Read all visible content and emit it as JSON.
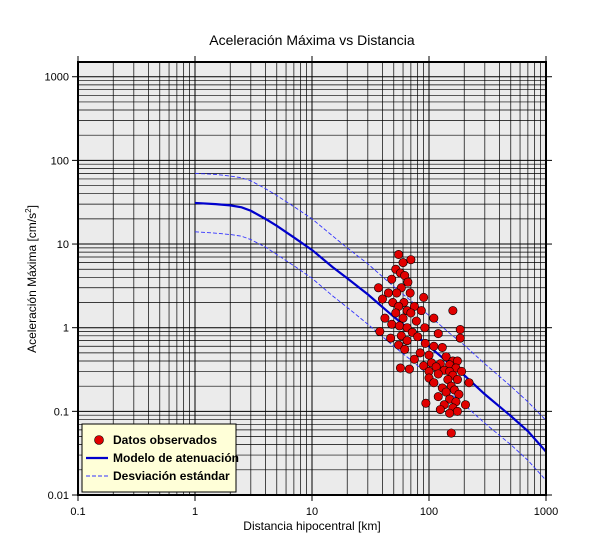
{
  "chart_data": {
    "type": "scatter",
    "title": "Aceleración Máxima vs Distancia",
    "xlabel": "Distancia hipocentral [km]",
    "ylabel_main": "Aceleración Máxima [cm/s",
    "ylabel_sup": "2",
    "ylabel_end": "]",
    "xscale": "log",
    "yscale": "log",
    "xlim": [
      0.1,
      1000
    ],
    "ylim": [
      0.01,
      1500
    ],
    "grid": true,
    "legend_position": "bottom-left",
    "x_ticks": [
      0.1,
      1,
      10,
      100,
      1000
    ],
    "x_tick_labels": [
      "0.1",
      "1",
      "10",
      "100",
      "1000"
    ],
    "y_ticks": [
      0.01,
      0.1,
      1,
      10,
      100,
      1000
    ],
    "y_tick_labels": [
      "0.01",
      "0.1",
      "1",
      "10",
      "100",
      "1000"
    ],
    "colors": {
      "background": "#ebebeb",
      "points": "#e00000",
      "model": "#0000cc",
      "deviation": "#3333ff",
      "legend_bg": "#ffffd8"
    },
    "legend": [
      "Datos observados",
      "Modelo de atenuación",
      "Desviación estándar"
    ],
    "series": [
      {
        "name": "Datos observados",
        "kind": "scatter",
        "points": [
          [
            55,
            7.5
          ],
          [
            70,
            6.5
          ],
          [
            60,
            6
          ],
          [
            52,
            5
          ],
          [
            57,
            4.5
          ],
          [
            62,
            4.2
          ],
          [
            48,
            3.8
          ],
          [
            66,
            3.5
          ],
          [
            58,
            3.0
          ],
          [
            37,
            3.0
          ],
          [
            45,
            2.6
          ],
          [
            53,
            2.6
          ],
          [
            69,
            2.6
          ],
          [
            90,
            2.3
          ],
          [
            40,
            2.2
          ],
          [
            49,
            2.0
          ],
          [
            61,
            2.0
          ],
          [
            55,
            1.8
          ],
          [
            75,
            1.8
          ],
          [
            65,
            1.6
          ],
          [
            86,
            1.6
          ],
          [
            160,
            1.6
          ],
          [
            52,
            1.5
          ],
          [
            70,
            1.5
          ],
          [
            42,
            1.3
          ],
          [
            60,
            1.3
          ],
          [
            110,
            1.3
          ],
          [
            78,
            1.2
          ],
          [
            48,
            1.1
          ],
          [
            56,
            1.05
          ],
          [
            92,
            1.0
          ],
          [
            65,
            1.0
          ],
          [
            185,
            0.95
          ],
          [
            38,
            0.9
          ],
          [
            72,
            0.88
          ],
          [
            120,
            0.85
          ],
          [
            58,
            0.8
          ],
          [
            80,
            0.78
          ],
          [
            185,
            0.75
          ],
          [
            47,
            0.75
          ],
          [
            65,
            0.7
          ],
          [
            93,
            0.65
          ],
          [
            55,
            0.62
          ],
          [
            110,
            0.6
          ],
          [
            130,
            0.58
          ],
          [
            62,
            0.55
          ],
          [
            84,
            0.5
          ],
          [
            100,
            0.47
          ],
          [
            140,
            0.45
          ],
          [
            75,
            0.42
          ],
          [
            160,
            0.4
          ],
          [
            175,
            0.4
          ],
          [
            105,
            0.38
          ],
          [
            125,
            0.37
          ],
          [
            150,
            0.36
          ],
          [
            90,
            0.35
          ],
          [
            115,
            0.34
          ],
          [
            170,
            0.33
          ],
          [
            57,
            0.33
          ],
          [
            68,
            0.32
          ],
          [
            135,
            0.31
          ],
          [
            100,
            0.3
          ],
          [
            150,
            0.3
          ],
          [
            190,
            0.3
          ],
          [
            120,
            0.28
          ],
          [
            160,
            0.27
          ],
          [
            100,
            0.25
          ],
          [
            145,
            0.24
          ],
          [
            175,
            0.24
          ],
          [
            220,
            0.22
          ],
          [
            110,
            0.22
          ],
          [
            155,
            0.2
          ],
          [
            130,
            0.19
          ],
          [
            165,
            0.18
          ],
          [
            140,
            0.17
          ],
          [
            180,
            0.16
          ],
          [
            120,
            0.15
          ],
          [
            150,
            0.14
          ],
          [
            170,
            0.13
          ],
          [
            94,
            0.125
          ],
          [
            135,
            0.12
          ],
          [
            205,
            0.12
          ],
          [
            160,
            0.11
          ],
          [
            125,
            0.105
          ],
          [
            175,
            0.1
          ],
          [
            150,
            0.095
          ],
          [
            155,
            0.055
          ]
        ]
      },
      {
        "name": "Modelo de atenuación",
        "kind": "line",
        "points": [
          [
            1,
            31
          ],
          [
            1.5,
            30
          ],
          [
            2,
            29
          ],
          [
            2.5,
            27.5
          ],
          [
            3,
            25
          ],
          [
            4,
            20
          ],
          [
            5,
            16.5
          ],
          [
            7,
            12
          ],
          [
            10,
            8.5
          ],
          [
            15,
            5.3
          ],
          [
            20,
            3.9
          ],
          [
            30,
            2.5
          ],
          [
            50,
            1.35
          ],
          [
            70,
            0.92
          ],
          [
            100,
            0.6
          ],
          [
            150,
            0.37
          ],
          [
            200,
            0.27
          ],
          [
            300,
            0.16
          ],
          [
            500,
            0.088
          ],
          [
            700,
            0.058
          ],
          [
            1000,
            0.033
          ]
        ]
      },
      {
        "name": "Desviación estándar",
        "kind": "line",
        "points": [
          [
            1,
            70
          ],
          [
            1.5,
            68
          ],
          [
            2,
            65
          ],
          [
            2.5,
            62
          ],
          [
            3,
            57
          ],
          [
            4,
            46
          ],
          [
            5,
            38
          ],
          [
            7,
            28
          ],
          [
            10,
            20
          ],
          [
            15,
            12.5
          ],
          [
            20,
            9
          ],
          [
            30,
            5.8
          ],
          [
            50,
            3.1
          ],
          [
            70,
            2.1
          ],
          [
            100,
            1.4
          ],
          [
            150,
            0.86
          ],
          [
            200,
            0.62
          ],
          [
            300,
            0.37
          ],
          [
            500,
            0.2
          ],
          [
            700,
            0.13
          ],
          [
            1000,
            0.078
          ]
        ]
      },
      {
        "kind": "line",
        "points": [
          [
            1,
            14
          ],
          [
            1.5,
            13.5
          ],
          [
            2,
            13
          ],
          [
            2.5,
            12.4
          ],
          [
            3,
            11.3
          ],
          [
            4,
            9.2
          ],
          [
            5,
            7.5
          ],
          [
            7,
            5.5
          ],
          [
            10,
            3.9
          ],
          [
            15,
            2.4
          ],
          [
            20,
            1.75
          ],
          [
            30,
            1.1
          ],
          [
            50,
            0.6
          ],
          [
            70,
            0.41
          ],
          [
            100,
            0.27
          ],
          [
            150,
            0.165
          ],
          [
            200,
            0.12
          ],
          [
            300,
            0.072
          ],
          [
            500,
            0.04
          ],
          [
            700,
            0.026
          ],
          [
            1000,
            0.015
          ]
        ]
      }
    ]
  }
}
